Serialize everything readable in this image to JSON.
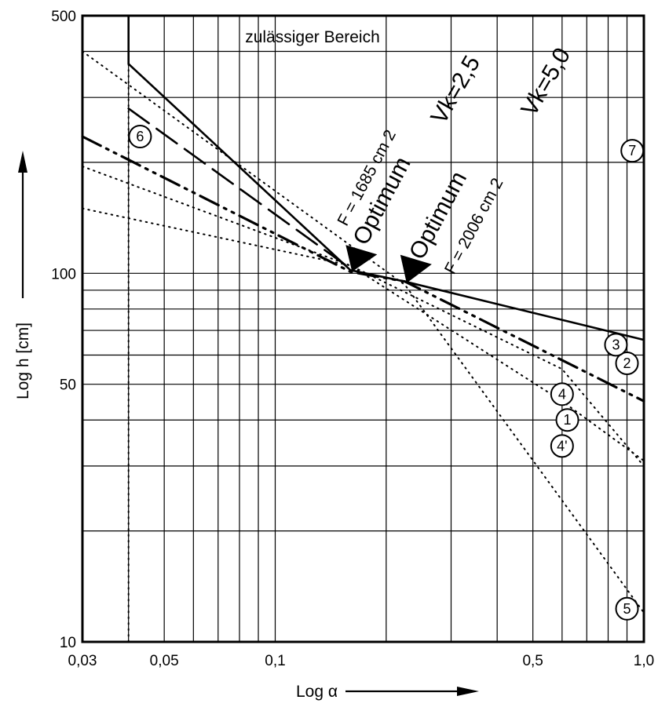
{
  "chart_data": {
    "type": "line",
    "x_scale": "log",
    "y_scale": "log",
    "xlim": [
      0.03,
      1.0
    ],
    "ylim": [
      10,
      500
    ],
    "xlabel": "Log α",
    "ylabel": "Log h [cm]",
    "x_ticks": [
      {
        "value": 0.03,
        "label": "0,03"
      },
      {
        "value": 0.05,
        "label": "0,05"
      },
      {
        "value": 0.1,
        "label": "0,1"
      },
      {
        "value": 0.5,
        "label": "0,5"
      },
      {
        "value": 1.0,
        "label": "1,0"
      }
    ],
    "y_ticks": [
      {
        "value": 10,
        "label": "10"
      },
      {
        "value": 50,
        "label": "50"
      },
      {
        "value": 100,
        "label": "100"
      },
      {
        "value": 500,
        "label": "500"
      }
    ],
    "grid": true,
    "region_label": "zulässiger Bereich",
    "vk_labels": [
      "Vk=2,5",
      "Vk=5,0"
    ],
    "optimum_labels": [
      {
        "text": "Optimum",
        "area": "F = 1685 cm 2",
        "x": 0.16,
        "y": 102
      },
      {
        "text": "Optimum",
        "area": "F = 2006 cm 2",
        "x": 0.225,
        "y": 95
      }
    ],
    "series": [
      {
        "name": "1",
        "style": "dotted",
        "x": [
          0.03,
          0.16,
          0.6,
          1.0
        ],
        "y": [
          195,
          105,
          45,
          31
        ]
      },
      {
        "name": "2",
        "style": "dash-dot",
        "x": [
          0.03,
          0.16,
          0.225,
          1.0
        ],
        "y": [
          235,
          101,
          95,
          45
        ]
      },
      {
        "name": "3",
        "style": "solid",
        "x": [
          0.04,
          0.04,
          0.16,
          0.225,
          1.0
        ],
        "y": [
          500,
          370,
          102,
          95,
          66
        ]
      },
      {
        "name": "4",
        "style": "dotted",
        "x": [
          0.03,
          0.16,
          0.6,
          1.0
        ],
        "y": [
          150,
          105,
          55,
          30
        ]
      },
      {
        "name": "5",
        "style": "dotted",
        "x": [
          0.03,
          0.225,
          1.0
        ],
        "y": [
          400,
          93,
          12
        ]
      },
      {
        "name": "6",
        "style": "dotted-vertical",
        "x": [
          0.04,
          0.04
        ],
        "y": [
          10,
          500
        ]
      },
      {
        "name": "long-dash",
        "style": "dashed",
        "x": [
          0.04,
          0.16
        ],
        "y": [
          280,
          103
        ]
      }
    ],
    "markers": [
      {
        "label": "1",
        "x": 0.62,
        "y": 40
      },
      {
        "label": "2",
        "x": 0.9,
        "y": 57
      },
      {
        "label": "3",
        "x": 0.84,
        "y": 64
      },
      {
        "label": "4",
        "x": 0.6,
        "y": 47
      },
      {
        "label": "4'",
        "x": 0.6,
        "y": 34
      },
      {
        "label": "5",
        "x": 0.9,
        "y": 12.3
      },
      {
        "label": "6",
        "x": 0.043,
        "y": 235
      },
      {
        "label": "7",
        "x": 0.93,
        "y": 215
      }
    ]
  }
}
